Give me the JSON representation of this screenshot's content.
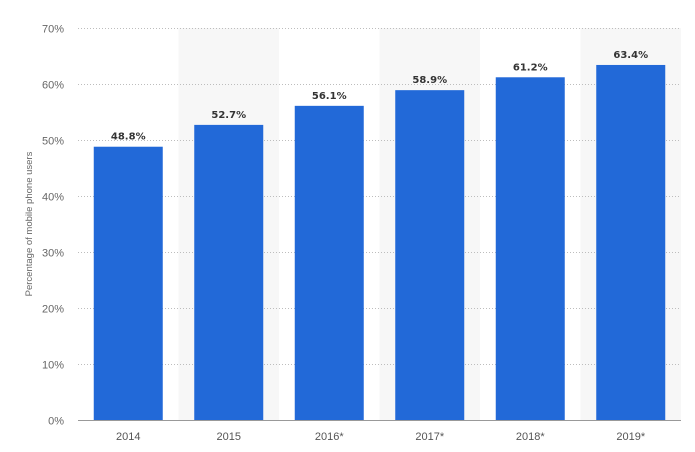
{
  "chart_data": {
    "type": "bar",
    "categories": [
      "2014",
      "2015",
      "2016*",
      "2017*",
      "2018*",
      "2019*"
    ],
    "values": [
      48.8,
      52.7,
      56.1,
      58.9,
      61.2,
      63.4
    ],
    "value_labels": [
      "48.8%",
      "52.7%",
      "56.1%",
      "58.9%",
      "61.2%",
      "63.4%"
    ],
    "ylabel": "Percentage of mobile phone users",
    "xlabel": "",
    "ylim": [
      0,
      70
    ],
    "yticks": [
      0,
      10,
      20,
      30,
      40,
      50,
      60,
      70
    ],
    "ytick_labels": [
      "0%",
      "10%",
      "20%",
      "30%",
      "40%",
      "50%",
      "60%",
      "70%"
    ],
    "grid": true,
    "alternate_column_shading": true,
    "colors": {
      "bar": "#2269d8",
      "band": "#f7f7f7"
    }
  }
}
